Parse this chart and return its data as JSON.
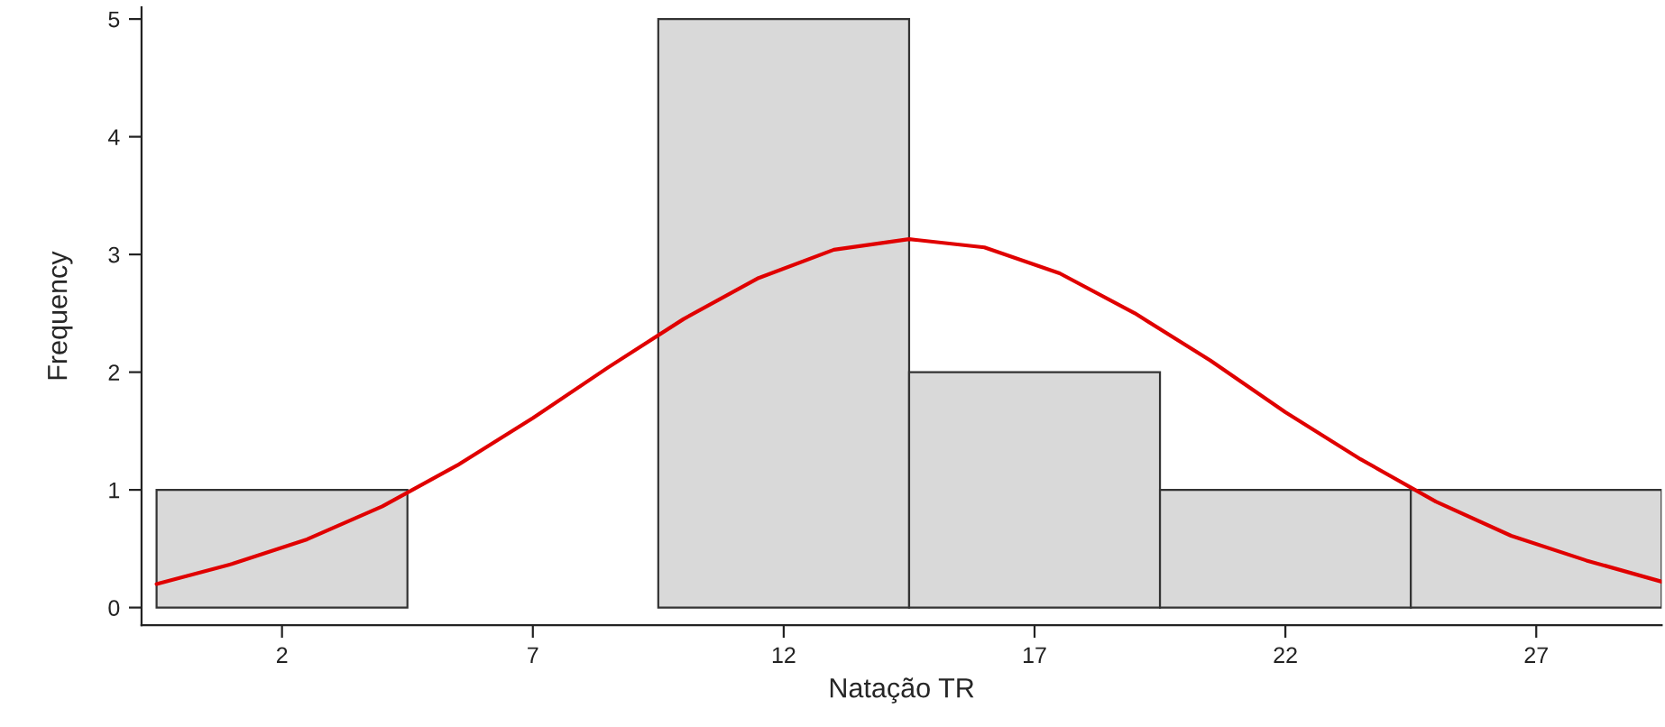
{
  "chart_data": {
    "type": "histogram",
    "xlabel": "Natação TR",
    "ylabel": "Frequency",
    "bins": [
      -0.5,
      4.5,
      9.5,
      14.5,
      19.5,
      24.5,
      29.5
    ],
    "values": [
      1,
      0,
      5,
      2,
      1,
      1
    ],
    "color": "#d9d9d9",
    "series": [
      {
        "type": "line",
        "color": "#e00000",
        "x": [
          -0.5,
          1,
          2.5,
          4,
          5.5,
          7,
          8.5,
          10,
          11.5,
          13,
          14.5,
          16,
          17.5,
          19,
          20.5,
          22,
          23.5,
          25,
          26.5,
          28,
          29.5
        ],
        "values": [
          0.2,
          0.37,
          0.58,
          0.86,
          1.21,
          1.61,
          2.04,
          2.45,
          2.8,
          3.04,
          3.13,
          3.06,
          2.84,
          2.5,
          2.1,
          1.66,
          1.26,
          0.9,
          0.61,
          0.4,
          0.22
        ]
      }
    ],
    "xlim": [
      -0.8,
      29.5
    ],
    "ylim": [
      -0.15,
      5.1
    ],
    "xticks": [
      2,
      7,
      12,
      17,
      22,
      27
    ],
    "yticks": [
      0,
      1,
      2,
      3,
      4,
      5
    ],
    "grid": false
  }
}
